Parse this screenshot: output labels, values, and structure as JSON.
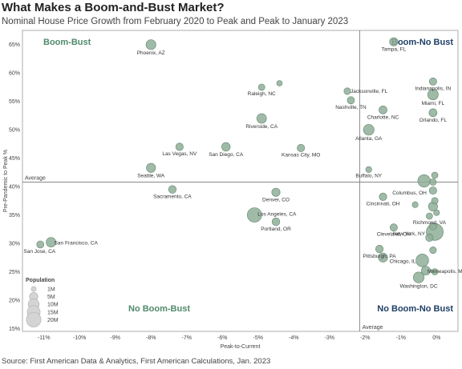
{
  "header": {
    "title": "What Makes a Boom-and-Bust Market?",
    "subtitle": "Nominal House Price Growth from February 2020 to Peak and Peak to January 2023"
  },
  "footer": {
    "source": "Source: First American Data & Analytics, First American Calculations, Jan. 2023"
  },
  "chart_data": {
    "type": "scatter",
    "xlabel": "Peak-to-Current",
    "ylabel": "Pre-Pandemic to Peak %",
    "xlim": [
      -11.6,
      0.6
    ],
    "ylim": [
      14.5,
      67.5
    ],
    "x_ticks": [
      -11,
      -10,
      -9,
      -8,
      -7,
      -6,
      -5,
      -4,
      -3,
      -2,
      -1,
      0
    ],
    "x_tick_labels": [
      "-11%",
      "-10%",
      "-9%",
      "-8%",
      "-7%",
      "-6%",
      "-5%",
      "-4%",
      "-3%",
      "-2%",
      "-1%",
      "0%"
    ],
    "y_ticks": [
      15,
      20,
      25,
      30,
      35,
      40,
      45,
      50,
      55,
      60,
      65
    ],
    "y_tick_labels": [
      "15%",
      "20%",
      "25%",
      "30%",
      "35%",
      "40%",
      "45%",
      "50%",
      "55%",
      "60%",
      "65%"
    ],
    "reference_lines": {
      "x": -2.15,
      "y": 40.8,
      "x_label": "Average",
      "y_label": "Average"
    },
    "quadrants": [
      {
        "label": "Boom-Bust",
        "color": "#4f8a6b",
        "position": "top-left"
      },
      {
        "label": "Boom-No Bust",
        "color": "#1f3f66",
        "position": "top-right"
      },
      {
        "label": "No Boom-Bust",
        "color": "#4f8a6b",
        "position": "bottom-left"
      },
      {
        "label": "No Boom-No Bust",
        "color": "#1f3f66",
        "position": "bottom-right"
      }
    ],
    "point_color": "#8fae99",
    "point_stroke": "#6e8f79",
    "legend": {
      "title": "Population",
      "position": "bottom-left",
      "items": [
        {
          "label": "1M",
          "pop": 1
        },
        {
          "label": "5M",
          "pop": 5
        },
        {
          "label": "10M",
          "pop": 10
        },
        {
          "label": "15M",
          "pop": 15
        },
        {
          "label": "20M",
          "pop": 20
        }
      ]
    },
    "points": [
      {
        "label": "Phoenix, AZ",
        "x": -8.0,
        "y": 65.0,
        "pop": 5
      },
      {
        "label": "Tampa, FL",
        "x": -1.2,
        "y": 65.5,
        "pop": 3
      },
      {
        "label": "Raleigh, NC",
        "x": -4.9,
        "y": 57.5,
        "pop": 1.4
      },
      {
        "label": "",
        "x": -4.4,
        "y": 58.2,
        "pop": 0.8
      },
      {
        "label": "Jacksonville, FL",
        "x": -2.5,
        "y": 56.8,
        "pop": 1.6
      },
      {
        "label": "Nashville, TN",
        "x": -2.4,
        "y": 55.2,
        "pop": 2
      },
      {
        "label": "Indianapolis, IN",
        "x": -0.1,
        "y": 58.5,
        "pop": 2.1
      },
      {
        "label": "Miami, FL",
        "x": -0.1,
        "y": 56.2,
        "pop": 6
      },
      {
        "label": "Charlotte, NC",
        "x": -1.5,
        "y": 53.5,
        "pop": 2.7
      },
      {
        "label": "Orlando, FL",
        "x": -0.1,
        "y": 53.0,
        "pop": 2.7
      },
      {
        "label": "Riverside, CA",
        "x": -4.9,
        "y": 52.0,
        "pop": 4.6
      },
      {
        "label": "Atlanta, GA",
        "x": -1.9,
        "y": 50.0,
        "pop": 6.1
      },
      {
        "label": "Las Vegas, NV",
        "x": -7.2,
        "y": 47.0,
        "pop": 2.3
      },
      {
        "label": "San Diego, CA",
        "x": -5.9,
        "y": 47.0,
        "pop": 3.3
      },
      {
        "label": "Kansas City, MO",
        "x": -3.8,
        "y": 46.8,
        "pop": 2.2
      },
      {
        "label": "Seattle, WA",
        "x": -8.0,
        "y": 43.3,
        "pop": 4
      },
      {
        "label": "Buffalo, NY",
        "x": -1.9,
        "y": 43.0,
        "pop": 1.1
      },
      {
        "label": "",
        "x": -0.05,
        "y": 42.0,
        "pop": 1.3
      },
      {
        "label": "",
        "x": -0.35,
        "y": 41.0,
        "pop": 9
      },
      {
        "label": "",
        "x": -0.1,
        "y": 40.8,
        "pop": 1.5
      },
      {
        "label": "Sacramento, CA",
        "x": -7.4,
        "y": 39.5,
        "pop": 2.4
      },
      {
        "label": "Denver, CO",
        "x": -4.5,
        "y": 39.0,
        "pop": 3
      },
      {
        "label": "Columbus, OH",
        "x": -0.1,
        "y": 39.3,
        "pop": 2.2
      },
      {
        "label": "Cincinnati, OH",
        "x": -1.5,
        "y": 38.2,
        "pop": 2.3
      },
      {
        "label": "",
        "x": -0.05,
        "y": 37.5,
        "pop": 1.5
      },
      {
        "label": "",
        "x": -0.1,
        "y": 36.5,
        "pop": 4
      },
      {
        "label": "",
        "x": -0.6,
        "y": 36.8,
        "pop": 1
      },
      {
        "label": "",
        "x": 0.0,
        "y": 35.4,
        "pop": 1
      },
      {
        "label": "Richmond, VA",
        "x": -0.2,
        "y": 34.8,
        "pop": 1.3
      },
      {
        "label": "Los Angeles, CA",
        "x": -5.1,
        "y": 35.0,
        "pop": 13
      },
      {
        "label": "Portland, OR",
        "x": -4.5,
        "y": 33.8,
        "pop": 2.5
      },
      {
        "label": "Cleveland, OH",
        "x": -1.2,
        "y": 32.8,
        "pop": 2.1
      },
      {
        "label": "",
        "x": -0.1,
        "y": 33.0,
        "pop": 2
      },
      {
        "label": "New York, NY",
        "x": -0.05,
        "y": 32.0,
        "pop": 19
      },
      {
        "label": "",
        "x": -0.2,
        "y": 31.0,
        "pop": 2.3
      },
      {
        "label": "San Francisco, CA",
        "x": -10.8,
        "y": 30.2,
        "pop": 4.7
      },
      {
        "label": "San Jose, CA",
        "x": -11.1,
        "y": 29.8,
        "pop": 2
      },
      {
        "label": "Pittsburgh, PA",
        "x": -1.6,
        "y": 29.0,
        "pop": 2.4
      },
      {
        "label": "",
        "x": -0.1,
        "y": 28.8,
        "pop": 1.6
      },
      {
        "label": "Chicago, IL",
        "x": -0.4,
        "y": 27.0,
        "pop": 9.5
      },
      {
        "label": "",
        "x": -1.5,
        "y": 27.5,
        "pop": 4
      },
      {
        "label": "Minneapolis, MN",
        "x": -0.3,
        "y": 25.2,
        "pop": 3.7
      },
      {
        "label": "",
        "x": -0.05,
        "y": 25.0,
        "pop": 1.3
      },
      {
        "label": "Washington, DC",
        "x": -0.5,
        "y": 24.0,
        "pop": 6.3
      }
    ]
  }
}
